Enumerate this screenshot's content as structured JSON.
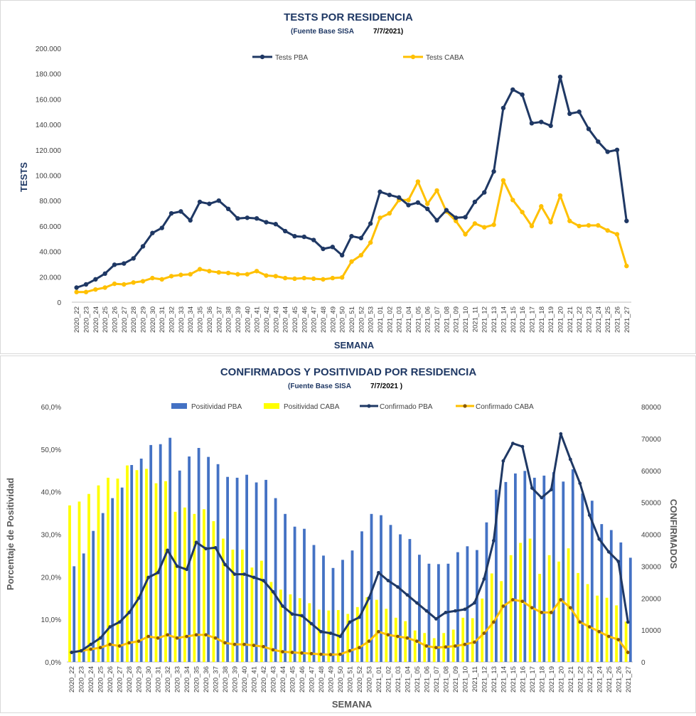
{
  "chart_data": [
    {
      "type": "line",
      "title": "TESTS POR RESIDENCIA",
      "subtitle_source": "(Fuente Base SISA",
      "subtitle_date": "7/7/2021)",
      "xlabel": "SEMANA",
      "ylabel": "TESTS",
      "ylim": [
        0,
        200000
      ],
      "y_ticks": [
        "0",
        "20.000",
        "40.000",
        "60.000",
        "80.000",
        "100.000",
        "120.000",
        "140.000",
        "160.000",
        "180.000",
        "200.000"
      ],
      "legend_position": "top",
      "categories": [
        "2020_22",
        "2020_23",
        "2020_24",
        "2020_25",
        "2020_26",
        "2020_27",
        "2020_28",
        "2020_29",
        "2020_30",
        "2020_31",
        "2020_32",
        "2020_33",
        "2020_34",
        "2020_35",
        "2020_36",
        "2020_37",
        "2020_38",
        "2020_39",
        "2020_40",
        "2020_41",
        "2020_42",
        "2020_43",
        "2020_44",
        "2020_45",
        "2020_46",
        "2020_47",
        "2020_48",
        "2020_49",
        "2020_50",
        "2020_51",
        "2020_52",
        "2020_53",
        "2021_01",
        "2021_02",
        "2021_03",
        "2021_04",
        "2021_05",
        "2021_06",
        "2021_07",
        "2021_08",
        "2021_09",
        "2021_10",
        "2021_11",
        "2021_12",
        "2021_13",
        "2021_14",
        "2021_15",
        "2021_16",
        "2021_17",
        "2021_18",
        "2021_19",
        "2021_20",
        "2021_21",
        "2021_22",
        "2021_23",
        "2021_24",
        "2021_25",
        "2021_26",
        "2021_27"
      ],
      "series": [
        {
          "name": "Tests PBA",
          "color": "#1f3864",
          "values": [
            11500,
            14000,
            18000,
            22500,
            29500,
            30500,
            34500,
            44000,
            54500,
            58500,
            70000,
            71500,
            64500,
            79000,
            77500,
            80000,
            73500,
            66000,
            66500,
            66000,
            63000,
            61500,
            56000,
            52000,
            51500,
            49000,
            42000,
            43500,
            37000,
            52000,
            50500,
            62000,
            87000,
            84500,
            82500,
            76500,
            78500,
            73500,
            64500,
            72500,
            66500,
            67000,
            79000,
            86500,
            103000,
            153000,
            167500,
            163500,
            141000,
            142000,
            139000,
            177500,
            148500,
            150000,
            136500,
            126500,
            118500,
            120000,
            64000
          ]
        },
        {
          "name": "Tests CABA",
          "color": "#ffc000",
          "values": [
            8000,
            8000,
            10000,
            11500,
            14500,
            14000,
            15500,
            16500,
            19000,
            18000,
            20500,
            21500,
            22000,
            26000,
            24500,
            23500,
            23000,
            22000,
            22000,
            24500,
            21000,
            20500,
            19000,
            18500,
            19000,
            18500,
            18000,
            19000,
            19500,
            32000,
            37000,
            47000,
            66500,
            70000,
            80500,
            80500,
            95000,
            77500,
            88000,
            71500,
            64000,
            53500,
            62000,
            59000,
            61000,
            96000,
            80500,
            71000,
            60000,
            75500,
            63000,
            84000,
            64000,
            60000,
            60500,
            60500,
            56500,
            53500,
            28500
          ]
        }
      ]
    },
    {
      "type": "bar+line",
      "title": "CONFIRMADOS Y POSITIVIDAD POR RESIDENCIA",
      "subtitle_source": "(Fuente Base SISA",
      "subtitle_date": "7/7/2021 )",
      "xlabel": "SEMANA",
      "ylabel_left": "Porcentaje de Positividad",
      "ylabel_right": "CONFIRMADOS",
      "ylim_left": [
        0,
        60
      ],
      "ylim_right": [
        0,
        80000
      ],
      "y_ticks_left": [
        "0,0%",
        "10,0%",
        "20,0%",
        "30,0%",
        "40,0%",
        "50,0%",
        "60,0%"
      ],
      "y_ticks_right": [
        "0",
        "10000",
        "20000",
        "30000",
        "40000",
        "50000",
        "60000",
        "70000",
        "80000"
      ],
      "legend_position": "top",
      "categories": [
        "2020_22",
        "2020_23",
        "2020_24",
        "2020_25",
        "2020_26",
        "2020_27",
        "2020_28",
        "2020_29",
        "2020_30",
        "2020_31",
        "2020_32",
        "2020_33",
        "2020_34",
        "2020_35",
        "2020_36",
        "2020_37",
        "2020_38",
        "2020_39",
        "2020_40",
        "2020_41",
        "2020_42",
        "2020_43",
        "2020_44",
        "2020_45",
        "2020_46",
        "2020_47",
        "2020_48",
        "2020_49",
        "2020_50",
        "2020_51",
        "2020_52",
        "2020_53",
        "2021_01",
        "2021_02",
        "2021_03",
        "2021_04",
        "2021_05",
        "2021_06",
        "2021_07",
        "2021_08",
        "2021_09",
        "2021_10",
        "2021_11",
        "2021_12",
        "2021_13",
        "2021_14",
        "2021_15",
        "2021_16",
        "2021_17",
        "2021_18",
        "2021_19",
        "2021_20",
        "2021_21",
        "2021_22",
        "2021_23",
        "2021_24",
        "2021_25",
        "2021_26",
        "2021_27"
      ],
      "bar_series": [
        {
          "name": "Positividad PBA",
          "color": "#4472c4",
          "values": [
            22.5,
            25.5,
            30.8,
            35,
            38.5,
            41,
            46.3,
            47.8,
            51,
            51.2,
            52.7,
            45,
            48.3,
            50.3,
            48.2,
            46.5,
            43.5,
            43.3,
            44,
            42.2,
            42.8,
            38.5,
            34.8,
            31.8,
            31.3,
            27.5,
            25,
            22.1,
            24,
            26.2,
            30.7,
            34.8,
            34.5,
            32.2,
            30,
            28.9,
            25.2,
            23.1,
            23,
            23.1,
            25.8,
            27.2,
            26.3,
            32.8,
            40.5,
            42.3,
            44.3,
            44.9,
            43.3,
            43.8,
            44.6,
            42.4,
            45.3,
            39.6,
            37.9,
            32.4,
            31,
            28.1,
            24.5
          ]
        },
        {
          "name": "Positividad CABA",
          "color": "#ffff00",
          "values": [
            36.8,
            37.7,
            39.5,
            41.5,
            43.3,
            43.1,
            46.2,
            45.1,
            45.4,
            42,
            42.5,
            35.3,
            36.3,
            34.8,
            35.9,
            33.1,
            29,
            26.4,
            26.4,
            22.2,
            23.8,
            18.8,
            17,
            15.9,
            15,
            13.8,
            12.3,
            12.1,
            12.2,
            11.3,
            12.9,
            15.2,
            14.6,
            12.5,
            10.4,
            9.6,
            7.4,
            6.8,
            5.6,
            6.8,
            7.6,
            10.4,
            10.3,
            14.9,
            20.8,
            19,
            25.1,
            28,
            29,
            20.7,
            25.1,
            23.6,
            26.7,
            20.9,
            18.3,
            15.6,
            15.1,
            13.3,
            9.5
          ]
        }
      ],
      "line_series": [
        {
          "name": "Confirmado PBA",
          "color": "#1f3864",
          "values": [
            3000,
            3500,
            5500,
            7500,
            11000,
            12500,
            15500,
            20000,
            26500,
            28000,
            35000,
            30000,
            29000,
            37500,
            35500,
            35800,
            30500,
            27500,
            27500,
            26500,
            25500,
            22000,
            17500,
            15000,
            14500,
            12000,
            9500,
            9000,
            8000,
            12500,
            14000,
            20000,
            28000,
            25500,
            23500,
            21000,
            18500,
            16000,
            13500,
            15500,
            16000,
            16500,
            18500,
            26000,
            38000,
            63000,
            68500,
            67500,
            54500,
            51500,
            54000,
            71500,
            63500,
            56000,
            46000,
            38500,
            34500,
            31500,
            12500
          ]
        },
        {
          "name": "Confirmado CABA",
          "color": "#ffc000",
          "values": [
            3000,
            3500,
            4000,
            4500,
            5500,
            5000,
            6000,
            6500,
            8000,
            7500,
            8500,
            7500,
            8000,
            8500,
            8500,
            7500,
            6000,
            5500,
            5500,
            5200,
            4800,
            3800,
            3200,
            3000,
            2800,
            2600,
            2400,
            2300,
            2400,
            3500,
            4500,
            6500,
            9500,
            8500,
            8000,
            7500,
            6500,
            5000,
            4500,
            4700,
            5000,
            5500,
            6200,
            9000,
            12500,
            17500,
            19500,
            19000,
            17000,
            15500,
            15500,
            19500,
            17000,
            12500,
            11000,
            9500,
            8000,
            7000,
            3000
          ]
        }
      ]
    }
  ]
}
